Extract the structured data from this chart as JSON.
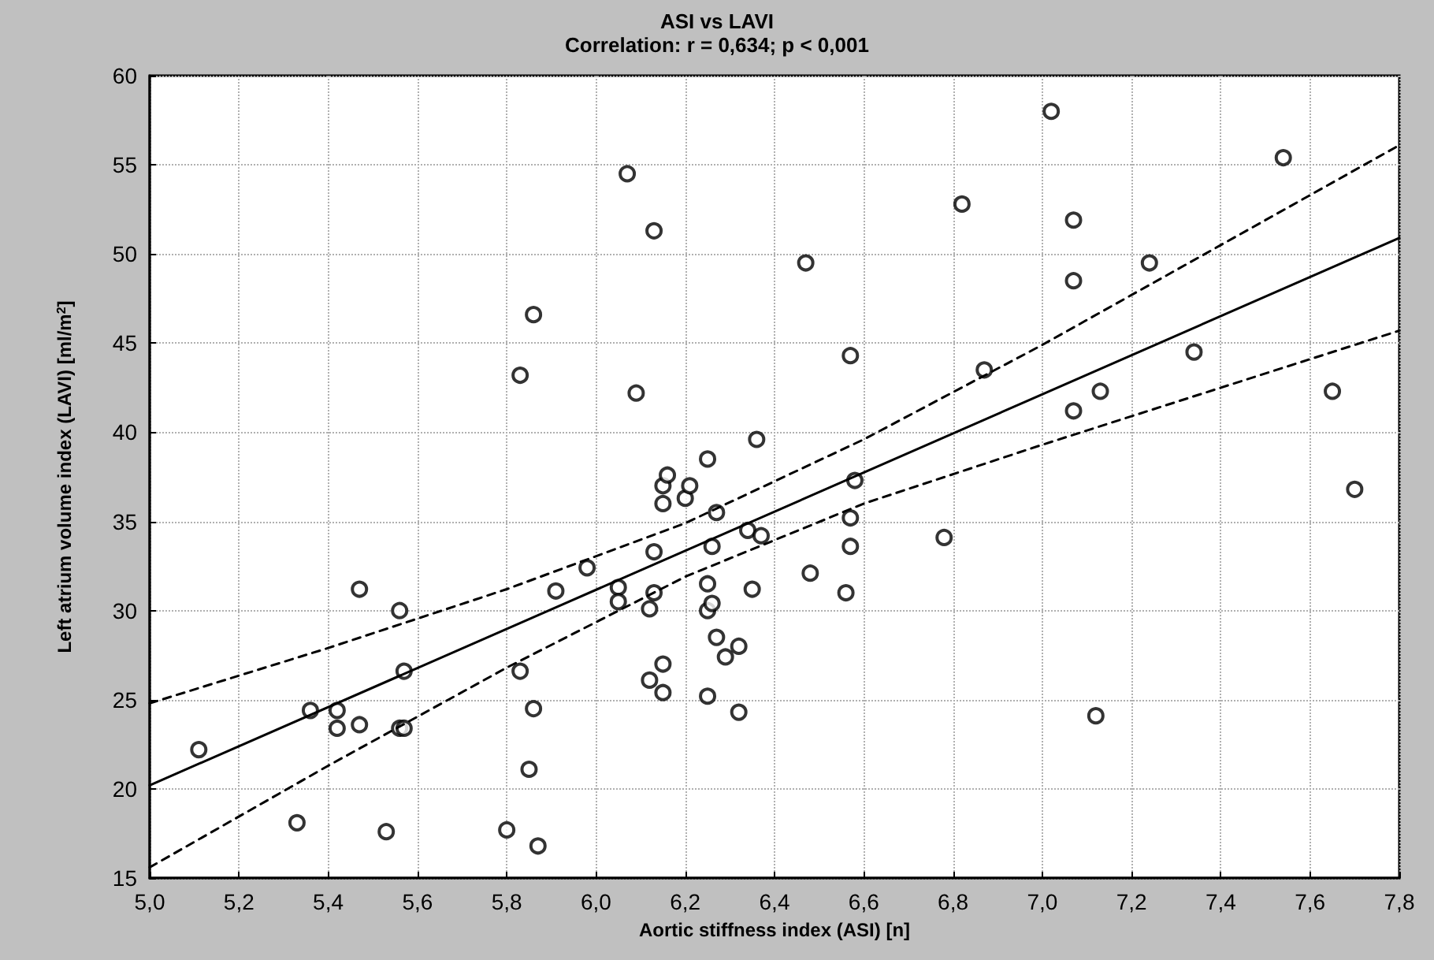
{
  "chart_data": {
    "type": "scatter",
    "title": "ASI vs LAVI",
    "subtitle": "Correlation: r = 0,634; p < 0,001",
    "xlabel": "Aortic stiffness index (ASI) [n]",
    "ylabel": "Left atrium volume index (LAVI) [ml/m$^{2}$]",
    "xlim": [
      5.0,
      7.8
    ],
    "xticks": [
      {
        "value": 5.0,
        "label": "5,0"
      },
      {
        "value": 5.2,
        "label": "5,2"
      },
      {
        "value": 5.4,
        "label": "5,4"
      },
      {
        "value": 5.6,
        "label": "5,6"
      },
      {
        "value": 5.8,
        "label": "5,8"
      },
      {
        "value": 6.0,
        "label": "6,0"
      },
      {
        "value": 6.2,
        "label": "6,2"
      },
      {
        "value": 6.4,
        "label": "6,4"
      },
      {
        "value": 6.6,
        "label": "6,6"
      },
      {
        "value": 6.8,
        "label": "6,8"
      },
      {
        "value": 7.0,
        "label": "7,0"
      },
      {
        "value": 7.2,
        "label": "7,2"
      },
      {
        "value": 7.4,
        "label": "7,4"
      },
      {
        "value": 7.6,
        "label": "7,6"
      },
      {
        "value": 7.8,
        "label": "7,8"
      }
    ],
    "ylim": [
      15,
      60
    ],
    "yticks": [
      15,
      20,
      25,
      30,
      35,
      40,
      45,
      50,
      55,
      60
    ],
    "grid": true,
    "marker": "circle",
    "series": [
      {
        "color": "#000000",
        "x": [
          5.11,
          5.33,
          5.36,
          5.42,
          5.42,
          5.47,
          5.47,
          5.53,
          5.56,
          5.57,
          5.56,
          5.57,
          5.8,
          5.83,
          5.86,
          5.83,
          5.86,
          5.85,
          5.87,
          5.91,
          5.98,
          6.05,
          6.05,
          6.07,
          6.09,
          6.12,
          6.12,
          6.13,
          6.13,
          6.13,
          6.15,
          6.15,
          6.15,
          6.15,
          6.16,
          6.2,
          6.21,
          6.25,
          6.25,
          6.25,
          6.25,
          6.26,
          6.26,
          6.27,
          6.27,
          6.29,
          6.32,
          6.32,
          6.34,
          6.35,
          6.36,
          6.37,
          6.47,
          6.48,
          6.56,
          6.57,
          6.57,
          6.57,
          6.58,
          6.78,
          6.82,
          6.87,
          7.02,
          7.07,
          7.07,
          7.07,
          7.12,
          7.13,
          7.24,
          7.34,
          7.54,
          7.65,
          7.7
        ],
        "values": [
          22.2,
          18.1,
          24.4,
          24.4,
          23.4,
          31.2,
          23.6,
          17.6,
          30.0,
          26.6,
          23.4,
          23.4,
          17.7,
          43.2,
          46.6,
          26.6,
          24.5,
          21.1,
          16.8,
          31.1,
          32.4,
          31.3,
          30.5,
          54.5,
          42.2,
          30.1,
          26.1,
          33.3,
          51.3,
          31.0,
          25.4,
          27.0,
          36.0,
          37.0,
          37.6,
          36.3,
          37.0,
          38.5,
          25.2,
          31.5,
          30.0,
          30.4,
          33.6,
          35.5,
          28.5,
          27.4,
          24.3,
          28.0,
          34.5,
          31.2,
          39.6,
          34.2,
          49.5,
          32.1,
          31.0,
          44.3,
          35.2,
          33.6,
          37.3,
          34.1,
          52.8,
          43.5,
          58.0,
          51.9,
          48.5,
          41.2,
          24.1,
          42.3,
          49.5,
          44.5,
          55.4,
          42.3,
          36.8
        ]
      },
      {
        "type": "line",
        "color": "#000000",
        "line_style": "solid",
        "marker": "none",
        "x": [
          5.0,
          7.8
        ],
        "values": [
          20.2,
          50.9
        ]
      },
      {
        "type": "line",
        "color": "#000000",
        "line_style": "dashed",
        "marker": "none",
        "x": [
          5.0,
          5.4,
          5.8,
          6.2,
          6.6,
          7.0,
          7.4,
          7.8
        ],
        "values": [
          24.8,
          27.9,
          31.2,
          34.9,
          39.6,
          44.9,
          50.5,
          56.1
        ]
      },
      {
        "type": "line",
        "color": "#000000",
        "line_style": "dashed",
        "marker": "none",
        "x": [
          5.0,
          5.4,
          5.8,
          6.2,
          6.6,
          7.0,
          7.4,
          7.8
        ],
        "values": [
          15.6,
          21.3,
          26.8,
          31.9,
          36.0,
          39.3,
          42.5,
          45.7
        ]
      }
    ]
  }
}
